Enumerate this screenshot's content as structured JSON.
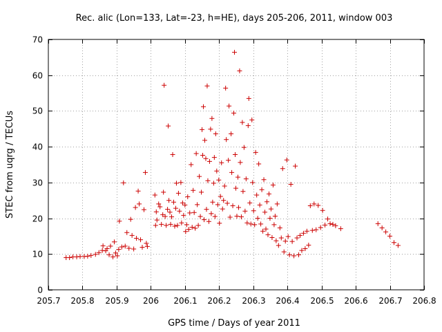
{
  "colors": {
    "series": "#cc0000",
    "grid": "#a0a0a0",
    "axis": "#000000"
  },
  "chart_data": {
    "type": "scatter",
    "title": "Rec. alic (Lon=133, Lat=-23, h=HE), days 205-206, 2011, window 003",
    "xlabel": "GPS time / Days of year 2011",
    "ylabel": "STEC from uqrg / TECUs",
    "xlim": [
      205.7,
      206.8
    ],
    "ylim": [
      0,
      70
    ],
    "xticks": [
      205.7,
      205.8,
      205.9,
      206,
      206.1,
      206.2,
      206.3,
      206.4,
      206.5,
      206.6,
      206.7,
      206.8
    ],
    "xtick_labels": [
      "205.7",
      "205.8",
      "205.9",
      "206",
      "206.1",
      "206.2",
      "206.3",
      "206.4",
      "206.5",
      "206.6",
      "206.7",
      "206.8"
    ],
    "yticks": [
      0,
      10,
      20,
      30,
      40,
      50,
      60,
      70
    ],
    "ytick_labels": [
      "0",
      "10",
      "20",
      "30",
      "40",
      "50",
      "60",
      "70"
    ],
    "grid": true,
    "legend": "none",
    "marker": "plus",
    "points": [
      [
        205.752,
        9.0
      ],
      [
        205.762,
        9.0
      ],
      [
        205.772,
        9.2
      ],
      [
        205.783,
        9.2
      ],
      [
        205.793,
        9.3
      ],
      [
        205.805,
        9.3
      ],
      [
        205.815,
        9.4
      ],
      [
        205.825,
        9.6
      ],
      [
        205.838,
        9.9
      ],
      [
        205.848,
        10.4
      ],
      [
        205.858,
        11.0
      ],
      [
        205.86,
        12.3
      ],
      [
        205.868,
        10.9
      ],
      [
        205.872,
        11.5
      ],
      [
        205.878,
        9.8
      ],
      [
        205.882,
        12.2
      ],
      [
        205.889,
        9.2
      ],
      [
        205.893,
        13.4
      ],
      [
        205.897,
        10.3
      ],
      [
        205.902,
        9.5
      ],
      [
        205.906,
        11.3
      ],
      [
        205.908,
        19.2
      ],
      [
        205.915,
        12.0
      ],
      [
        205.92,
        29.9
      ],
      [
        205.925,
        12.2
      ],
      [
        205.93,
        16.0
      ],
      [
        205.936,
        11.6
      ],
      [
        205.941,
        19.7
      ],
      [
        205.945,
        15.2
      ],
      [
        205.95,
        11.4
      ],
      [
        205.955,
        23.0
      ],
      [
        205.958,
        14.4
      ],
      [
        205.963,
        27.6
      ],
      [
        205.966,
        24.0
      ],
      [
        205.97,
        14.0
      ],
      [
        205.975,
        11.9
      ],
      [
        205.98,
        22.4
      ],
      [
        205.984,
        32.8
      ],
      [
        205.987,
        13.0
      ],
      [
        205.99,
        12.1
      ],
      [
        206.012,
        26.5
      ],
      [
        206.014,
        18.0
      ],
      [
        206.016,
        21.8
      ],
      [
        206.018,
        19.5
      ],
      [
        206.023,
        24.0
      ],
      [
        206.027,
        23.2
      ],
      [
        206.031,
        18.3
      ],
      [
        206.035,
        21.0
      ],
      [
        206.037,
        27.3
      ],
      [
        206.039,
        57.2
      ],
      [
        206.042,
        20.5
      ],
      [
        206.045,
        18.0
      ],
      [
        206.049,
        22.5
      ],
      [
        206.051,
        45.8
      ],
      [
        206.053,
        25.0
      ],
      [
        206.056,
        21.7
      ],
      [
        206.058,
        18.3
      ],
      [
        206.061,
        20.4
      ],
      [
        206.064,
        37.8
      ],
      [
        206.067,
        24.5
      ],
      [
        206.07,
        17.8
      ],
      [
        206.073,
        22.8
      ],
      [
        206.075,
        29.8
      ],
      [
        206.078,
        18.0
      ],
      [
        206.081,
        27.0
      ],
      [
        206.084,
        22.0
      ],
      [
        206.088,
        30.0
      ],
      [
        206.09,
        18.7
      ],
      [
        206.093,
        24.3
      ],
      [
        206.096,
        20.8
      ],
      [
        206.1,
        23.7
      ],
      [
        206.102,
        16.3
      ],
      [
        206.105,
        18.2
      ],
      [
        206.108,
        26.0
      ],
      [
        206.111,
        16.9
      ],
      [
        206.114,
        21.5
      ],
      [
        206.118,
        35.0
      ],
      [
        206.121,
        17.5
      ],
      [
        206.124,
        27.8
      ],
      [
        206.127,
        21.6
      ],
      [
        206.13,
        17.2
      ],
      [
        206.133,
        38.1
      ],
      [
        206.136,
        23.8
      ],
      [
        206.139,
        18.0
      ],
      [
        206.142,
        31.7
      ],
      [
        206.145,
        20.5
      ],
      [
        206.148,
        27.3
      ],
      [
        206.15,
        44.8
      ],
      [
        206.152,
        37.6
      ],
      [
        206.154,
        51.2
      ],
      [
        206.156,
        19.6
      ],
      [
        206.158,
        41.8
      ],
      [
        206.161,
        36.7
      ],
      [
        206.163,
        22.5
      ],
      [
        206.165,
        57.0
      ],
      [
        206.167,
        30.5
      ],
      [
        206.17,
        19.1
      ],
      [
        206.172,
        35.9
      ],
      [
        206.175,
        44.9
      ],
      [
        206.177,
        21.3
      ],
      [
        206.179,
        47.9
      ],
      [
        206.181,
        24.5
      ],
      [
        206.184,
        29.8
      ],
      [
        206.186,
        37.0
      ],
      [
        206.188,
        20.5
      ],
      [
        206.19,
        43.6
      ],
      [
        206.193,
        33.2
      ],
      [
        206.196,
        23.8
      ],
      [
        206.199,
        30.7
      ],
      [
        206.201,
        18.6
      ],
      [
        206.204,
        26.1
      ],
      [
        206.207,
        35.5
      ],
      [
        206.21,
        22.6
      ],
      [
        206.213,
        25.0
      ],
      [
        206.216,
        29.0
      ],
      [
        206.219,
        56.4
      ],
      [
        206.221,
        42.0
      ],
      [
        206.224,
        24.2
      ],
      [
        206.227,
        36.2
      ],
      [
        206.229,
        51.4
      ],
      [
        206.232,
        20.3
      ],
      [
        206.235,
        43.6
      ],
      [
        206.237,
        32.8
      ],
      [
        206.24,
        23.5
      ],
      [
        206.243,
        49.4
      ],
      [
        206.245,
        66.4
      ],
      [
        206.247,
        37.8
      ],
      [
        206.249,
        28.4
      ],
      [
        206.252,
        20.6
      ],
      [
        206.255,
        31.5
      ],
      [
        206.257,
        23.0
      ],
      [
        206.26,
        61.2
      ],
      [
        206.262,
        35.6
      ],
      [
        206.265,
        20.4
      ],
      [
        206.268,
        46.8
      ],
      [
        206.27,
        27.5
      ],
      [
        206.273,
        39.8
      ],
      [
        206.276,
        22.0
      ],
      [
        206.279,
        31.0
      ],
      [
        206.282,
        18.7
      ],
      [
        206.285,
        45.9
      ],
      [
        206.287,
        53.5
      ],
      [
        206.29,
        24.3
      ],
      [
        206.293,
        18.4
      ],
      [
        206.296,
        47.5
      ],
      [
        206.298,
        30.0
      ],
      [
        206.301,
        22.1
      ],
      [
        206.304,
        18.2
      ],
      [
        206.307,
        38.4
      ],
      [
        206.31,
        26.5
      ],
      [
        206.313,
        20.0
      ],
      [
        206.316,
        35.2
      ],
      [
        206.319,
        23.7
      ],
      [
        206.322,
        18.4
      ],
      [
        206.325,
        28.0
      ],
      [
        206.328,
        16.4
      ],
      [
        206.331,
        30.8
      ],
      [
        206.334,
        21.7
      ],
      [
        206.337,
        17.0
      ],
      [
        206.34,
        24.6
      ],
      [
        206.343,
        15.4
      ],
      [
        206.346,
        26.8
      ],
      [
        206.349,
        20.0
      ],
      [
        206.352,
        22.6
      ],
      [
        206.355,
        14.6
      ],
      [
        206.358,
        29.3
      ],
      [
        206.361,
        18.2
      ],
      [
        206.364,
        20.6
      ],
      [
        206.367,
        13.7
      ],
      [
        206.37,
        24.0
      ],
      [
        206.374,
        12.4
      ],
      [
        206.378,
        17.3
      ],
      [
        206.382,
        14.5
      ],
      [
        206.386,
        33.9
      ],
      [
        206.39,
        10.6
      ],
      [
        206.394,
        13.6
      ],
      [
        206.398,
        36.3
      ],
      [
        206.402,
        14.9
      ],
      [
        206.406,
        9.8
      ],
      [
        206.41,
        29.5
      ],
      [
        206.414,
        13.5
      ],
      [
        206.419,
        9.5
      ],
      [
        206.423,
        34.6
      ],
      [
        206.428,
        14.5
      ],
      [
        206.433,
        9.8
      ],
      [
        206.437,
        15.2
      ],
      [
        206.442,
        11.0
      ],
      [
        206.447,
        15.8
      ],
      [
        206.452,
        11.5
      ],
      [
        206.457,
        16.4
      ],
      [
        206.462,
        12.5
      ],
      [
        206.467,
        23.5
      ],
      [
        206.473,
        16.6
      ],
      [
        206.478,
        24.0
      ],
      [
        206.484,
        16.8
      ],
      [
        206.49,
        23.6
      ],
      [
        206.497,
        17.4
      ],
      [
        206.503,
        22.2
      ],
      [
        206.51,
        18.1
      ],
      [
        206.518,
        19.8
      ],
      [
        206.525,
        18.5
      ],
      [
        206.533,
        18.3
      ],
      [
        206.541,
        17.9
      ],
      [
        206.556,
        17.1
      ],
      [
        206.665,
        18.5
      ],
      [
        206.677,
        17.3
      ],
      [
        206.688,
        16.2
      ],
      [
        206.7,
        15.0
      ],
      [
        206.712,
        13.2
      ],
      [
        206.724,
        12.4
      ]
    ]
  }
}
